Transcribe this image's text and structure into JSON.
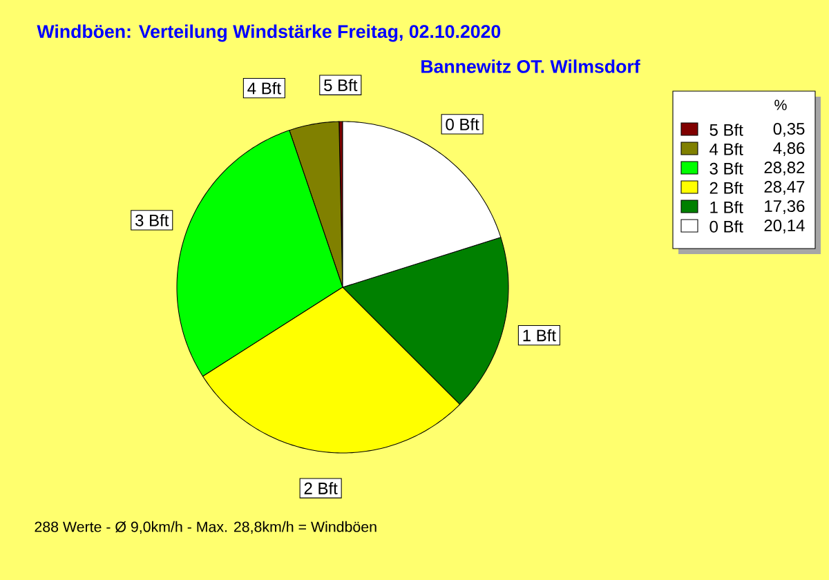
{
  "chart_data": {
    "type": "pie",
    "title": "Windböen: Verteilung Windstärke  Freitag, 02.10.2020",
    "subtitle": "Bannewitz OT. Wilmsdorf",
    "legend_title": "%",
    "categories": [
      "5 Bft",
      "4 Bft",
      "3 Bft",
      "2 Bft",
      "1 Bft",
      "0 Bft"
    ],
    "values": [
      0.35,
      4.86,
      28.82,
      28.47,
      17.36,
      20.14
    ],
    "value_labels": [
      "0,35",
      "4,86",
      "28,82",
      "28,47",
      "17,36",
      "20,14"
    ],
    "colors": [
      "#800000",
      "#808000",
      "#00ff00",
      "#ffff00",
      "#008000",
      "#ffffff"
    ],
    "legend": "top right",
    "annotations": [
      "288 Werte   -   Ø 9,0km/h  -  Max. 28,8km/h = Windböen"
    ]
  }
}
